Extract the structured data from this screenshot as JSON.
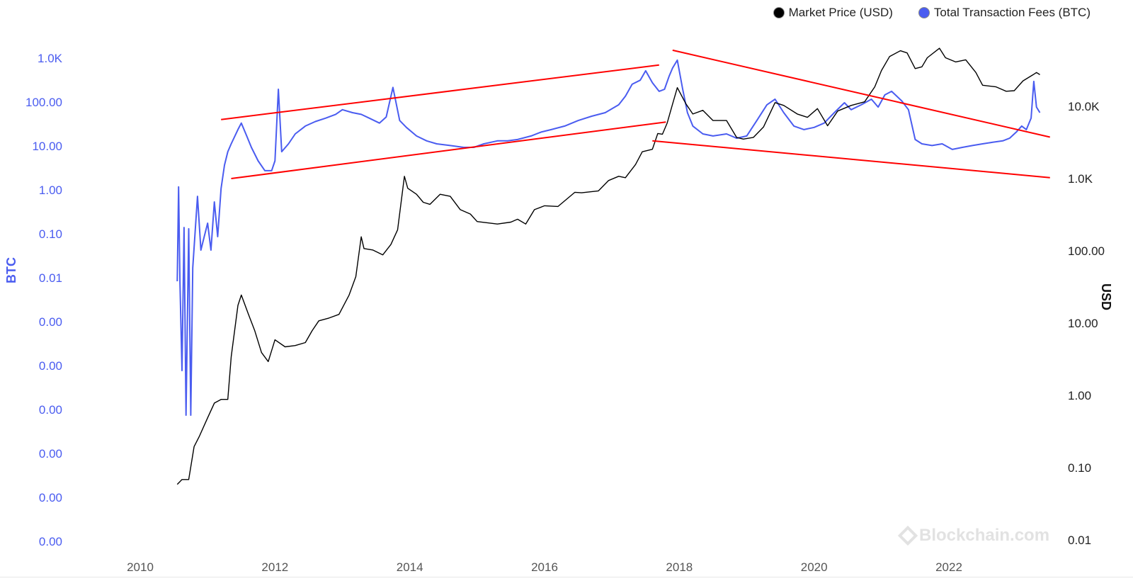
{
  "chart_data": {
    "type": "line",
    "legend": [
      {
        "label": "Market Price (USD)",
        "color": "#000000"
      },
      {
        "label": "Total Transaction Fees (BTC)",
        "color": "#4a5cf0"
      }
    ],
    "legend_position": "top-right",
    "y_left": {
      "title": "BTC",
      "scale": "log",
      "tick_labels": [
        "1.0K",
        "100.00",
        "10.00",
        "1.00",
        "0.10",
        "0.01",
        "0.00",
        "0.00",
        "0.00",
        "0.00",
        "0.00",
        "0.00"
      ]
    },
    "y_right": {
      "title": "USD",
      "scale": "log",
      "tick_labels": [
        "10.0K",
        "1.0K",
        "100.00",
        "10.00",
        "1.00",
        "0.10",
        "0.01"
      ]
    },
    "x_tick_labels": [
      "2010",
      "2012",
      "2014",
      "2016",
      "2018",
      "2020",
      "2022"
    ],
    "grid": false,
    "series": [
      {
        "name": "Market Price (USD)",
        "axis": "right",
        "color": "#000000",
        "points": [
          [
            2010.55,
            0.06
          ],
          [
            2010.62,
            0.07
          ],
          [
            2010.72,
            0.07
          ],
          [
            2010.8,
            0.2
          ],
          [
            2010.88,
            0.28
          ],
          [
            2011.0,
            0.5
          ],
          [
            2011.1,
            0.8
          ],
          [
            2011.2,
            0.9
          ],
          [
            2011.3,
            0.9
          ],
          [
            2011.35,
            3.5
          ],
          [
            2011.45,
            18
          ],
          [
            2011.5,
            25
          ],
          [
            2011.6,
            14
          ],
          [
            2011.7,
            8
          ],
          [
            2011.8,
            4
          ],
          [
            2011.9,
            3
          ],
          [
            2012.0,
            6
          ],
          [
            2012.15,
            4.8
          ],
          [
            2012.3,
            5
          ],
          [
            2012.45,
            5.5
          ],
          [
            2012.55,
            8
          ],
          [
            2012.65,
            11
          ],
          [
            2012.8,
            12
          ],
          [
            2012.95,
            13.5
          ],
          [
            2013.1,
            25
          ],
          [
            2013.2,
            45
          ],
          [
            2013.28,
            160
          ],
          [
            2013.32,
            110
          ],
          [
            2013.45,
            105
          ],
          [
            2013.6,
            90
          ],
          [
            2013.72,
            125
          ],
          [
            2013.82,
            200
          ],
          [
            2013.92,
            1100
          ],
          [
            2013.97,
            750
          ],
          [
            2014.1,
            620
          ],
          [
            2014.2,
            480
          ],
          [
            2014.3,
            450
          ],
          [
            2014.45,
            620
          ],
          [
            2014.6,
            580
          ],
          [
            2014.75,
            380
          ],
          [
            2014.9,
            330
          ],
          [
            2015.0,
            260
          ],
          [
            2015.15,
            250
          ],
          [
            2015.3,
            240
          ],
          [
            2015.5,
            255
          ],
          [
            2015.6,
            280
          ],
          [
            2015.72,
            240
          ],
          [
            2015.85,
            380
          ],
          [
            2016.0,
            430
          ],
          [
            2016.2,
            420
          ],
          [
            2016.45,
            660
          ],
          [
            2016.55,
            650
          ],
          [
            2016.8,
            690
          ],
          [
            2016.95,
            960
          ],
          [
            2017.1,
            1100
          ],
          [
            2017.2,
            1050
          ],
          [
            2017.35,
            1600
          ],
          [
            2017.45,
            2400
          ],
          [
            2017.6,
            2600
          ],
          [
            2017.68,
            4300
          ],
          [
            2017.75,
            4200
          ],
          [
            2017.82,
            6000
          ],
          [
            2017.9,
            11000
          ],
          [
            2017.97,
            18500
          ],
          [
            2018.1,
            11000
          ],
          [
            2018.2,
            8000
          ],
          [
            2018.35,
            9000
          ],
          [
            2018.5,
            6500
          ],
          [
            2018.7,
            6500
          ],
          [
            2018.85,
            3800
          ],
          [
            2018.95,
            3600
          ],
          [
            2019.1,
            3800
          ],
          [
            2019.25,
            5300
          ],
          [
            2019.42,
            11500
          ],
          [
            2019.55,
            10500
          ],
          [
            2019.75,
            8000
          ],
          [
            2019.9,
            7200
          ],
          [
            2020.05,
            9500
          ],
          [
            2020.2,
            5500
          ],
          [
            2020.35,
            8800
          ],
          [
            2020.55,
            10500
          ],
          [
            2020.75,
            11800
          ],
          [
            2020.9,
            19000
          ],
          [
            2021.0,
            32000
          ],
          [
            2021.12,
            50000
          ],
          [
            2021.28,
            60000
          ],
          [
            2021.38,
            56000
          ],
          [
            2021.5,
            34000
          ],
          [
            2021.6,
            36000
          ],
          [
            2021.68,
            48000
          ],
          [
            2021.86,
            65000
          ],
          [
            2021.95,
            48000
          ],
          [
            2022.1,
            42000
          ],
          [
            2022.25,
            45000
          ],
          [
            2022.4,
            30000
          ],
          [
            2022.5,
            20000
          ],
          [
            2022.7,
            19000
          ],
          [
            2022.85,
            16500
          ],
          [
            2022.97,
            16800
          ],
          [
            2023.1,
            23000
          ],
          [
            2023.25,
            28000
          ],
          [
            2023.3,
            30000
          ],
          [
            2023.35,
            28000
          ]
        ]
      },
      {
        "name": "Total Transaction Fees (BTC)",
        "axis": "left",
        "color": "#4a5cf0",
        "points": [
          [
            2010.55,
            0.01
          ],
          [
            2010.57,
            1.3
          ],
          [
            2010.59,
            0.01
          ],
          [
            2010.62,
            0.0001
          ],
          [
            2010.65,
            0.16
          ],
          [
            2010.68,
            1e-05
          ],
          [
            2010.72,
            0.15
          ],
          [
            2010.75,
            1e-05
          ],
          [
            2010.78,
            0.02
          ],
          [
            2010.85,
            0.8
          ],
          [
            2010.9,
            0.05
          ],
          [
            2010.95,
            0.1
          ],
          [
            2011.0,
            0.2
          ],
          [
            2011.05,
            0.05
          ],
          [
            2011.1,
            0.6
          ],
          [
            2011.15,
            0.1
          ],
          [
            2011.2,
            1.2
          ],
          [
            2011.25,
            4
          ],
          [
            2011.3,
            8
          ],
          [
            2011.35,
            12
          ],
          [
            2011.45,
            25
          ],
          [
            2011.5,
            35
          ],
          [
            2011.58,
            18
          ],
          [
            2011.65,
            10
          ],
          [
            2011.75,
            5
          ],
          [
            2011.85,
            3
          ],
          [
            2011.95,
            3
          ],
          [
            2012.0,
            5
          ],
          [
            2012.05,
            200
          ],
          [
            2012.1,
            8
          ],
          [
            2012.2,
            12
          ],
          [
            2012.3,
            20
          ],
          [
            2012.45,
            30
          ],
          [
            2012.6,
            38
          ],
          [
            2012.75,
            45
          ],
          [
            2012.9,
            55
          ],
          [
            2013.0,
            70
          ],
          [
            2013.15,
            60
          ],
          [
            2013.28,
            55
          ],
          [
            2013.4,
            45
          ],
          [
            2013.55,
            35
          ],
          [
            2013.65,
            48
          ],
          [
            2013.75,
            220
          ],
          [
            2013.85,
            40
          ],
          [
            2013.95,
            28
          ],
          [
            2014.1,
            18
          ],
          [
            2014.25,
            14
          ],
          [
            2014.4,
            12
          ],
          [
            2014.6,
            11
          ],
          [
            2014.8,
            10
          ],
          [
            2014.95,
            10
          ],
          [
            2015.1,
            12
          ],
          [
            2015.3,
            14
          ],
          [
            2015.45,
            14
          ],
          [
            2015.6,
            15
          ],
          [
            2015.8,
            18
          ],
          [
            2015.95,
            22
          ],
          [
            2016.1,
            25
          ],
          [
            2016.3,
            30
          ],
          [
            2016.5,
            40
          ],
          [
            2016.7,
            50
          ],
          [
            2016.9,
            60
          ],
          [
            2017.1,
            90
          ],
          [
            2017.2,
            140
          ],
          [
            2017.3,
            260
          ],
          [
            2017.42,
            320
          ],
          [
            2017.5,
            520
          ],
          [
            2017.6,
            280
          ],
          [
            2017.7,
            180
          ],
          [
            2017.78,
            200
          ],
          [
            2017.85,
            400
          ],
          [
            2017.9,
            600
          ],
          [
            2017.97,
            900
          ],
          [
            2018.05,
            200
          ],
          [
            2018.12,
            60
          ],
          [
            2018.2,
            30
          ],
          [
            2018.35,
            20
          ],
          [
            2018.5,
            18
          ],
          [
            2018.7,
            20
          ],
          [
            2018.85,
            16
          ],
          [
            2019.0,
            18
          ],
          [
            2019.15,
            40
          ],
          [
            2019.3,
            90
          ],
          [
            2019.42,
            120
          ],
          [
            2019.55,
            60
          ],
          [
            2019.7,
            30
          ],
          [
            2019.85,
            25
          ],
          [
            2020.0,
            28
          ],
          [
            2020.15,
            35
          ],
          [
            2020.3,
            60
          ],
          [
            2020.45,
            100
          ],
          [
            2020.55,
            70
          ],
          [
            2020.7,
            90
          ],
          [
            2020.85,
            120
          ],
          [
            2020.95,
            80
          ],
          [
            2021.05,
            150
          ],
          [
            2021.15,
            180
          ],
          [
            2021.3,
            110
          ],
          [
            2021.4,
            70
          ],
          [
            2021.5,
            15
          ],
          [
            2021.6,
            12
          ],
          [
            2021.75,
            11
          ],
          [
            2021.9,
            12
          ],
          [
            2022.05,
            9
          ],
          [
            2022.2,
            10
          ],
          [
            2022.35,
            11
          ],
          [
            2022.5,
            12
          ],
          [
            2022.65,
            13
          ],
          [
            2022.8,
            14
          ],
          [
            2022.9,
            16
          ],
          [
            2023.0,
            22
          ],
          [
            2023.08,
            30
          ],
          [
            2023.15,
            25
          ],
          [
            2023.22,
            45
          ],
          [
            2023.26,
            300
          ],
          [
            2023.3,
            80
          ],
          [
            2023.35,
            60
          ]
        ]
      }
    ],
    "trendlines": [
      {
        "axis": "left",
        "color": "#ff0000",
        "from": [
          2011.2,
          42
        ],
        "to": [
          2017.7,
          700
        ]
      },
      {
        "axis": "left",
        "color": "#ff0000",
        "from": [
          2011.35,
          2
        ],
        "to": [
          2017.8,
          37
        ]
      },
      {
        "axis": "left",
        "color": "#ff0000",
        "from": [
          2017.9,
          1500
        ],
        "to": [
          2023.5,
          17
        ]
      },
      {
        "axis": "left",
        "color": "#ff0000",
        "from": [
          2017.6,
          14
        ],
        "to": [
          2023.5,
          2.1
        ]
      }
    ]
  },
  "watermark": "Blockchain.com"
}
